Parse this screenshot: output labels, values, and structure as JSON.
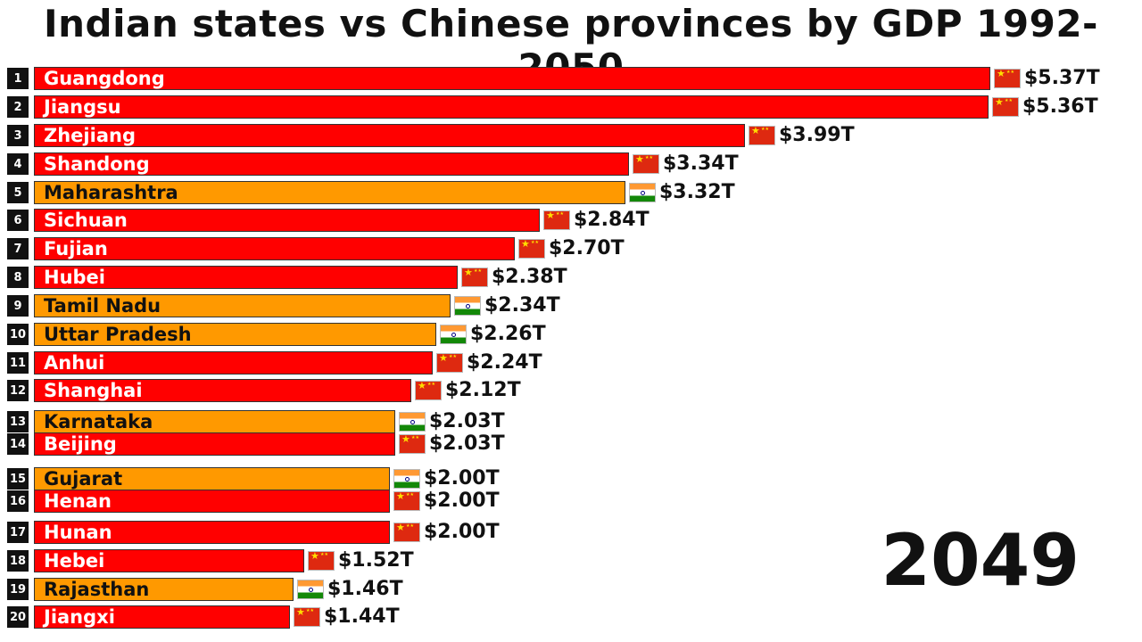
{
  "title": "Indian states vs Chinese provinces by GDP 1992-2050",
  "year": "2049",
  "colors": {
    "china": "#ff0000",
    "india": "#ff9900",
    "china_text": "#ffffff",
    "india_text": "#111111"
  },
  "chart_data": {
    "type": "bar",
    "orientation": "horizontal",
    "unit": "$T",
    "categories": [
      "Guangdong",
      "Jiangsu",
      "Zhejiang",
      "Shandong",
      "Maharashtra",
      "Sichuan",
      "Fujian",
      "Hubei",
      "Tamil Nadu",
      "Uttar Pradesh",
      "Anhui",
      "Shanghai",
      "Karnataka",
      "Beijing",
      "Gujarat",
      "Henan",
      "Hunan",
      "Hebei",
      "Rajasthan",
      "Jiangxi"
    ],
    "ranks": [
      "1",
      "2",
      "3",
      "4",
      "5",
      "6",
      "7",
      "8",
      "9",
      "10",
      "11",
      "12",
      "13",
      "14",
      "15",
      "16",
      "17",
      "18",
      "19",
      "20"
    ],
    "values": [
      5.37,
      5.36,
      3.99,
      3.34,
      3.32,
      2.84,
      2.7,
      2.38,
      2.34,
      2.26,
      2.24,
      2.12,
      2.03,
      2.03,
      2.0,
      2.0,
      2.0,
      1.52,
      1.46,
      1.44
    ],
    "value_labels": [
      "$5.37T",
      "$5.36T",
      "$3.99T",
      "$3.34T",
      "$3.32T",
      "$2.84T",
      "$2.70T",
      "$2.38T",
      "$2.34T",
      "$2.26T",
      "$2.24T",
      "$2.12T",
      "$2.03T",
      "$2.03T",
      "$2.00T",
      "$2.00T",
      "$2.00T",
      "$1.52T",
      "$1.46T",
      "$1.44T"
    ],
    "country": [
      "china",
      "china",
      "china",
      "china",
      "india",
      "china",
      "china",
      "china",
      "india",
      "india",
      "china",
      "china",
      "india",
      "china",
      "india",
      "china",
      "china",
      "china",
      "india",
      "china"
    ]
  }
}
